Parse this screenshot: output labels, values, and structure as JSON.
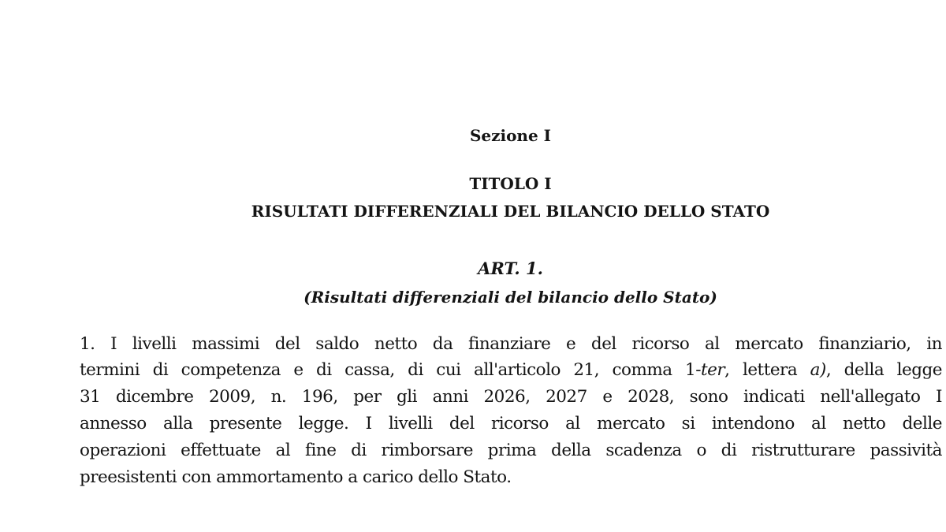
{
  "section": "Sezione I",
  "title": "TITOLO I",
  "title_subtitle": "RISULTATI DIFFERENZIALI DEL BILANCIO DELLO STATO",
  "article": {
    "number": "ART. 1.",
    "heading": "(Risultati differenziali del bilancio dello Stato)"
  },
  "paragraph": {
    "line1": "1. I livelli massimi del saldo netto da finanziare e del ricorso al mercato finanziario, in",
    "line2_a": "termini di competenza e di cassa, di cui all'articolo 21, comma 1-",
    "line2_b": "ter",
    "line2_c": ", lettera ",
    "line2_d": "a)",
    "line2_e": ", della legge",
    "line3": "31 dicembre 2009, n. 196, per gli anni 2026, 2027 e 2028, sono indicati nell'allegato I",
    "line4": "annesso alla presente legge. I livelli del ricorso al mercato si intendono al netto delle",
    "line5": "operazioni effettuate al fine di rimborsare prima della scadenza o di ristrutturare passività",
    "line6": "preesistenti con ammortamento a carico dello Stato."
  }
}
